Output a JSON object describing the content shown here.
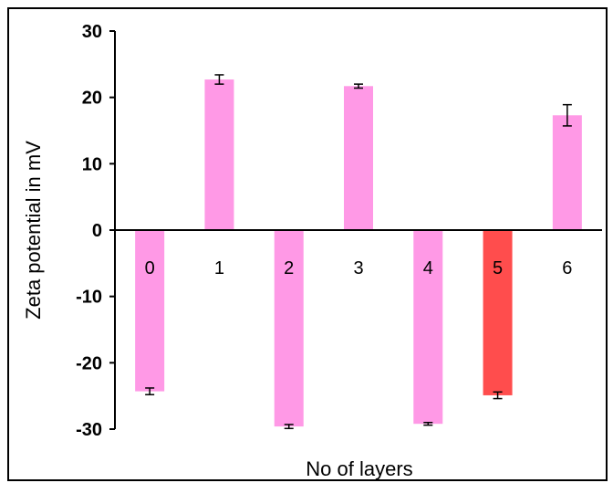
{
  "chart_data": {
    "type": "bar",
    "xlabel": "No of layers",
    "ylabel": "Zeta potential in mV",
    "categories": [
      "0",
      "1",
      "2",
      "3",
      "4",
      "5",
      "6"
    ],
    "values": [
      -24.3,
      22.7,
      -29.6,
      21.7,
      -29.2,
      -24.9,
      17.3
    ],
    "errors": [
      0.5,
      0.7,
      0.3,
      0.3,
      0.2,
      0.5,
      1.6
    ],
    "ylim": [
      -30,
      30
    ],
    "yticks": [
      30,
      20,
      10,
      0,
      -10,
      -20,
      -30
    ],
    "grid": false,
    "legend": "none",
    "colors": {
      "default_bar": "#FF99E6",
      "highlight_bar": "#FF4D4D",
      "highlight_index": 5
    }
  }
}
